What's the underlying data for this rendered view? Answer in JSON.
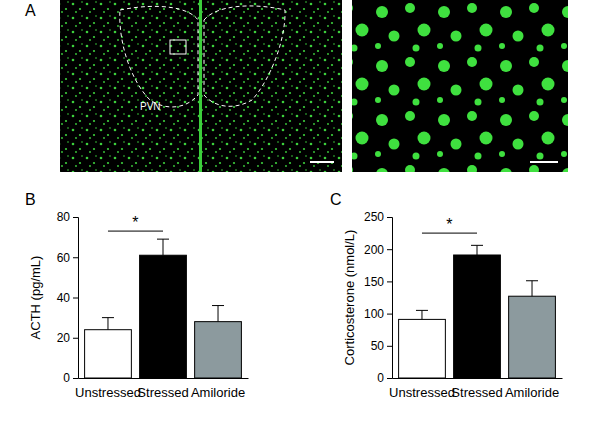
{
  "chart_data": [
    {
      "type": "bar",
      "title": "B",
      "ylabel": "ACTH (pg/mL)",
      "categories": [
        "Unstressed",
        "Stressed",
        "Amiloride"
      ],
      "values": [
        24,
        61,
        28
      ],
      "errors": [
        6,
        8,
        8
      ],
      "colors": [
        "#ffffff",
        "#000000",
        "#8c9a9e"
      ],
      "ylim": [
        0,
        80
      ],
      "yticks": [
        0,
        20,
        40,
        60,
        80
      ],
      "annotations": [
        {
          "text": "*",
          "from": 0,
          "to": 1,
          "y": 73
        }
      ]
    },
    {
      "type": "bar",
      "title": "C",
      "ylabel": "Corticosterone (nmol/L)",
      "categories": [
        "Unstressed",
        "Stressed",
        "Amiloride"
      ],
      "values": [
        91,
        191,
        127
      ],
      "errors": [
        14,
        15,
        24
      ],
      "colors": [
        "#ffffff",
        "#000000",
        "#8c9a9e"
      ],
      "ylim": [
        0,
        250
      ],
      "yticks": [
        0,
        50,
        100,
        150,
        200,
        250
      ],
      "annotations": [
        {
          "text": "*",
          "from": 0,
          "to": 1,
          "y": 225
        }
      ]
    }
  ],
  "panel_a": {
    "label": "A",
    "region_label": "PVN"
  }
}
